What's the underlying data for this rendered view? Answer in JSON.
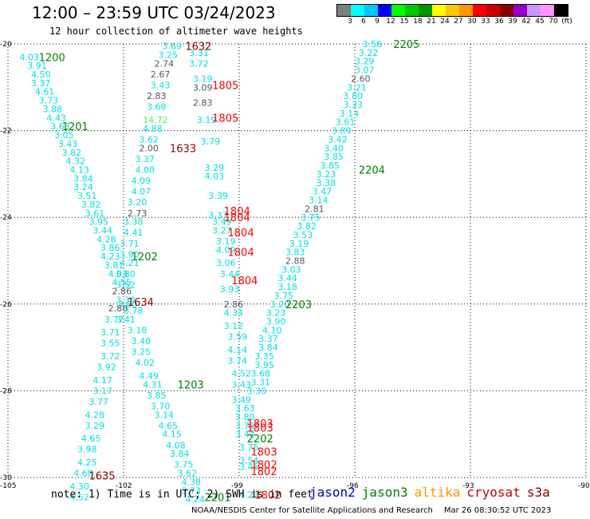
{
  "header": {
    "title": "12:00 – 23:59 UTC 03/24/2023",
    "subtitle": "12 hour collection of altimeter wave heights"
  },
  "colorbar": {
    "colors": [
      "#7f7f7f",
      "#00ffff",
      "#00c8ff",
      "#0000ff",
      "#00ff00",
      "#00c800",
      "#009600",
      "#ffff00",
      "#ffc800",
      "#ff9600",
      "#ff0000",
      "#c80000",
      "#8b0000",
      "#9600c8",
      "#c896ff",
      "#ff96ff",
      "#000000"
    ],
    "labels": [
      "3",
      "6",
      "9",
      "12",
      "15",
      "18",
      "21",
      "24",
      "27",
      "30",
      "33",
      "36",
      "39",
      "42",
      "45",
      "70",
      "(ft)"
    ]
  },
  "axes": {
    "lon_labels": [
      "-105",
      "-102",
      "-99",
      "-96",
      "-93",
      "-90"
    ],
    "lat_labels": [
      "-20",
      "-22",
      "-24",
      "-26",
      "-28",
      "-30"
    ]
  },
  "points": [
    {
      "lon": -104.7,
      "lat": -20.3,
      "v": "4.03"
    },
    {
      "lon": -104.5,
      "lat": -20.5,
      "v": "3.91"
    },
    {
      "lon": -104.4,
      "lat": -20.7,
      "v": "4.50"
    },
    {
      "lon": -104.4,
      "lat": -20.9,
      "v": "3.37"
    },
    {
      "lon": -104.3,
      "lat": -21.1,
      "v": "4.61"
    },
    {
      "lon": -104.2,
      "lat": -21.3,
      "v": "3.73"
    },
    {
      "lon": -104.1,
      "lat": -21.5,
      "v": "3.88"
    },
    {
      "lon": -104.0,
      "lat": -21.7,
      "v": "4.43"
    },
    {
      "lon": -103.9,
      "lat": -21.9,
      "v": "3.63"
    },
    {
      "lon": -103.8,
      "lat": -22.1,
      "v": "3.05"
    },
    {
      "lon": -103.7,
      "lat": -22.3,
      "v": "3.43"
    },
    {
      "lon": -103.6,
      "lat": -22.5,
      "v": "3.82"
    },
    {
      "lon": -103.5,
      "lat": -22.7,
      "v": "4.32"
    },
    {
      "lon": -103.4,
      "lat": -22.9,
      "v": "4.13"
    },
    {
      "lon": -103.3,
      "lat": -23.1,
      "v": "3.84"
    },
    {
      "lon": -103.3,
      "lat": -23.3,
      "v": "3.24"
    },
    {
      "lon": -103.2,
      "lat": -23.5,
      "v": "3.51"
    },
    {
      "lon": -103.1,
      "lat": -23.7,
      "v": "3.82"
    },
    {
      "lon": -103.0,
      "lat": -23.9,
      "v": "3.61"
    },
    {
      "lon": -102.9,
      "lat": -24.1,
      "v": "3.95"
    },
    {
      "lon": -102.8,
      "lat": -24.3,
      "v": "3.44"
    },
    {
      "lon": -102.7,
      "lat": -24.5,
      "v": "4.28"
    },
    {
      "lon": -102.6,
      "lat": -24.7,
      "v": "3.86"
    },
    {
      "lon": -102.6,
      "lat": -24.9,
      "v": "4.23"
    },
    {
      "lon": -102.5,
      "lat": -25.1,
      "v": "3.81"
    },
    {
      "lon": -102.4,
      "lat": -25.3,
      "v": "4.03"
    },
    {
      "lon": -102.3,
      "lat": -25.5,
      "v": "4.55"
    },
    {
      "lon": -102.3,
      "lat": -25.7,
      "v": "2.86",
      "c": "gray"
    },
    {
      "lon": -102.2,
      "lat": -25.9,
      "v": "3.33"
    },
    {
      "lon": -102.4,
      "lat": -26.1,
      "v": "2.88",
      "c": "gray"
    },
    {
      "lon": -102.5,
      "lat": -26.35,
      "v": "3.77"
    },
    {
      "lon": -102.6,
      "lat": -26.65,
      "v": "3.71"
    },
    {
      "lon": -102.6,
      "lat": -26.9,
      "v": "3.55"
    },
    {
      "lon": -102.6,
      "lat": -27.2,
      "v": "3.72"
    },
    {
      "lon": -102.7,
      "lat": -27.45,
      "v": "3.92"
    },
    {
      "lon": -102.8,
      "lat": -27.75,
      "v": "4.17"
    },
    {
      "lon": -102.8,
      "lat": -28.0,
      "v": "3.17"
    },
    {
      "lon": -102.9,
      "lat": -28.25,
      "v": "3.77"
    },
    {
      "lon": -103.0,
      "lat": -28.55,
      "v": "4.28"
    },
    {
      "lon": -103.0,
      "lat": -28.8,
      "v": "3.29"
    },
    {
      "lon": -103.1,
      "lat": -29.1,
      "v": "4.65"
    },
    {
      "lon": -103.2,
      "lat": -29.35,
      "v": "3.98"
    },
    {
      "lon": -103.2,
      "lat": -29.65,
      "v": "4.25"
    },
    {
      "lon": -103.3,
      "lat": -29.9,
      "v": "4.68"
    },
    {
      "lon": -103.4,
      "lat": -30.2,
      "v": "4.30"
    },
    {
      "lon": -103.4,
      "lat": -30.45,
      "v": "4.52"
    },
    {
      "lon": -101.0,
      "lat": -20.05,
      "v": "3.69"
    },
    {
      "lon": -101.1,
      "lat": -20.25,
      "v": "3.25"
    },
    {
      "lon": -101.2,
      "lat": -20.45,
      "v": "2.74",
      "c": "gray"
    },
    {
      "lon": -101.3,
      "lat": -20.7,
      "v": "2.67",
      "c": "gray"
    },
    {
      "lon": -101.3,
      "lat": -20.95,
      "v": "3.43"
    },
    {
      "lon": -101.4,
      "lat": -21.2,
      "v": "2.83",
      "c": "gray"
    },
    {
      "lon": -101.4,
      "lat": -21.45,
      "v": "3.68"
    },
    {
      "lon": -101.5,
      "lat": -21.75,
      "v": "14.72",
      "c": "lime"
    },
    {
      "lon": -101.5,
      "lat": -21.95,
      "v": "4.88"
    },
    {
      "lon": -101.6,
      "lat": -22.2,
      "v": "3.62"
    },
    {
      "lon": -101.6,
      "lat": -22.4,
      "v": "2.00",
      "c": "gray"
    },
    {
      "lon": -101.7,
      "lat": -22.65,
      "v": "3.37"
    },
    {
      "lon": -101.7,
      "lat": -22.9,
      "v": "4.08"
    },
    {
      "lon": -101.8,
      "lat": -23.15,
      "v": "4.09"
    },
    {
      "lon": -101.8,
      "lat": -23.4,
      "v": "4.07"
    },
    {
      "lon": -101.9,
      "lat": -23.65,
      "v": "3.20"
    },
    {
      "lon": -101.9,
      "lat": -23.9,
      "v": "2.73",
      "c": "gray"
    },
    {
      "lon": -102.0,
      "lat": -24.1,
      "v": "3.38"
    },
    {
      "lon": -102.0,
      "lat": -24.35,
      "v": "4.41"
    },
    {
      "lon": -102.1,
      "lat": -24.6,
      "v": "3.71"
    },
    {
      "lon": -102.1,
      "lat": -24.85,
      "v": "3.90"
    },
    {
      "lon": -102.1,
      "lat": -25.05,
      "v": "4.21"
    },
    {
      "lon": -102.2,
      "lat": -25.3,
      "v": "3.80"
    },
    {
      "lon": -102.2,
      "lat": -25.55,
      "v": "3.52"
    },
    {
      "lon": -102.15,
      "lat": -26.0,
      "v": "3.80"
    },
    {
      "lon": -102.0,
      "lat": -26.15,
      "v": "3.78"
    },
    {
      "lon": -102.2,
      "lat": -26.35,
      "v": "3.41"
    },
    {
      "lon": -101.9,
      "lat": -26.6,
      "v": "3.18"
    },
    {
      "lon": -101.8,
      "lat": -26.85,
      "v": "3.40"
    },
    {
      "lon": -101.8,
      "lat": -27.1,
      "v": "3.25"
    },
    {
      "lon": -101.7,
      "lat": -27.35,
      "v": "4.02"
    },
    {
      "lon": -101.6,
      "lat": -27.65,
      "v": "4.49"
    },
    {
      "lon": -101.5,
      "lat": -27.85,
      "v": "4.31"
    },
    {
      "lon": -101.4,
      "lat": -28.1,
      "v": "3.85"
    },
    {
      "lon": -101.3,
      "lat": -28.35,
      "v": "3.70"
    },
    {
      "lon": -101.2,
      "lat": -28.55,
      "v": "3.14"
    },
    {
      "lon": -101.1,
      "lat": -28.8,
      "v": "4.65"
    },
    {
      "lon": -101.0,
      "lat": -29.0,
      "v": "4.15"
    },
    {
      "lon": -100.9,
      "lat": -29.25,
      "v": "4.08"
    },
    {
      "lon": -100.8,
      "lat": -29.45,
      "v": "3.84"
    },
    {
      "lon": -100.7,
      "lat": -29.7,
      "v": "3.75"
    },
    {
      "lon": -100.6,
      "lat": -29.9,
      "v": "3.62"
    },
    {
      "lon": -100.5,
      "lat": -30.1,
      "v": "4.38"
    },
    {
      "lon": -100.5,
      "lat": -30.3,
      "v": "3.73"
    },
    {
      "lon": -100.4,
      "lat": -30.5,
      "v": "4.24"
    },
    {
      "lon": -100.3,
      "lat": -20.2,
      "v": "3.31"
    },
    {
      "lon": -100.3,
      "lat": -20.45,
      "v": "3.72"
    },
    {
      "lon": -100.2,
      "lat": -20.8,
      "v": "3.19"
    },
    {
      "lon": -100.2,
      "lat": -21.0,
      "v": "3.09",
      "c": "gray"
    },
    {
      "lon": -100.2,
      "lat": -21.35,
      "v": "2.83",
      "c": "gray"
    },
    {
      "lon": -100.1,
      "lat": -21.75,
      "v": "3.19"
    },
    {
      "lon": -100.0,
      "lat": -22.25,
      "v": "3.79"
    },
    {
      "lon": -99.9,
      "lat": -22.85,
      "v": "3.29"
    },
    {
      "lon": -99.9,
      "lat": -23.05,
      "v": "4.03"
    },
    {
      "lon": -99.8,
      "lat": -23.5,
      "v": "3.39"
    },
    {
      "lon": -99.8,
      "lat": -23.95,
      "v": "3.37"
    },
    {
      "lon": -99.7,
      "lat": -24.1,
      "v": "3.49"
    },
    {
      "lon": -99.7,
      "lat": -24.3,
      "v": "3.27"
    },
    {
      "lon": -99.6,
      "lat": -24.55,
      "v": "3.19"
    },
    {
      "lon": -99.6,
      "lat": -24.75,
      "v": "4.09"
    },
    {
      "lon": -99.6,
      "lat": -25.05,
      "v": "3.06"
    },
    {
      "lon": -99.5,
      "lat": -25.3,
      "v": "3.44"
    },
    {
      "lon": -99.5,
      "lat": -25.65,
      "v": "3.93"
    },
    {
      "lon": -99.4,
      "lat": -26.0,
      "v": "2.86",
      "c": "gray"
    },
    {
      "lon": -99.4,
      "lat": -26.2,
      "v": "4.34"
    },
    {
      "lon": -99.4,
      "lat": -26.5,
      "v": "3.12"
    },
    {
      "lon": -99.3,
      "lat": -26.75,
      "v": "3.59"
    },
    {
      "lon": -99.3,
      "lat": -27.05,
      "v": "4.14"
    },
    {
      "lon": -99.3,
      "lat": -27.3,
      "v": "3.74"
    },
    {
      "lon": -99.2,
      "lat": -27.6,
      "v": "4.52"
    },
    {
      "lon": -99.2,
      "lat": -27.85,
      "v": "3.43"
    },
    {
      "lon": -99.2,
      "lat": -28.2,
      "v": "3.49"
    },
    {
      "lon": -99.1,
      "lat": -28.4,
      "v": "3.63"
    },
    {
      "lon": -99.1,
      "lat": -28.6,
      "v": "3.80"
    },
    {
      "lon": -99.1,
      "lat": -28.8,
      "v": "3.73"
    },
    {
      "lon": -99.1,
      "lat": -29.0,
      "v": "3.44"
    },
    {
      "lon": -99.0,
      "lat": -29.3,
      "v": "3.75"
    },
    {
      "lon": -99.0,
      "lat": -29.6,
      "v": "3.54"
    },
    {
      "lon": -99.0,
      "lat": -29.75,
      "v": "3.45"
    },
    {
      "lon": -99.0,
      "lat": -30.4,
      "v": "4.23"
    },
    {
      "lon": -95.8,
      "lat": -20.0,
      "v": "3.56"
    },
    {
      "lon": -95.9,
      "lat": -20.2,
      "v": "3.22"
    },
    {
      "lon": -96.0,
      "lat": -20.4,
      "v": "3.29"
    },
    {
      "lon": -96.0,
      "lat": -20.6,
      "v": "3.07"
    },
    {
      "lon": -96.1,
      "lat": -20.8,
      "v": "2.60",
      "c": "gray"
    },
    {
      "lon": -96.2,
      "lat": -21.0,
      "v": "3.21"
    },
    {
      "lon": -96.3,
      "lat": -21.2,
      "v": "3.80"
    },
    {
      "lon": -96.3,
      "lat": -21.4,
      "v": "3.33"
    },
    {
      "lon": -96.4,
      "lat": -21.6,
      "v": "3.14"
    },
    {
      "lon": -96.5,
      "lat": -21.8,
      "v": "3.61"
    },
    {
      "lon": -96.6,
      "lat": -22.0,
      "v": "3.89"
    },
    {
      "lon": -96.7,
      "lat": -22.2,
      "v": "3.42"
    },
    {
      "lon": -96.8,
      "lat": -22.4,
      "v": "3.40"
    },
    {
      "lon": -96.8,
      "lat": -22.6,
      "v": "3.85"
    },
    {
      "lon": -96.9,
      "lat": -22.8,
      "v": "3.85"
    },
    {
      "lon": -97.0,
      "lat": -23.0,
      "v": "3.23"
    },
    {
      "lon": -97.0,
      "lat": -23.2,
      "v": "3.38"
    },
    {
      "lon": -97.1,
      "lat": -23.4,
      "v": "3.47"
    },
    {
      "lon": -97.2,
      "lat": -23.6,
      "v": "3.14"
    },
    {
      "lon": -97.3,
      "lat": -23.8,
      "v": "2.81",
      "c": "gray"
    },
    {
      "lon": -97.4,
      "lat": -24.0,
      "v": "3.75"
    },
    {
      "lon": -97.5,
      "lat": -24.2,
      "v": "3.82"
    },
    {
      "lon": -97.6,
      "lat": -24.4,
      "v": "3.53"
    },
    {
      "lon": -97.7,
      "lat": -24.6,
      "v": "3.19"
    },
    {
      "lon": -97.8,
      "lat": -24.8,
      "v": "3.83"
    },
    {
      "lon": -97.8,
      "lat": -25.0,
      "v": "2.88",
      "c": "gray"
    },
    {
      "lon": -97.9,
      "lat": -25.2,
      "v": "3.03"
    },
    {
      "lon": -98.0,
      "lat": -25.4,
      "v": "3.44"
    },
    {
      "lon": -98.0,
      "lat": -25.6,
      "v": "3.18"
    },
    {
      "lon": -98.1,
      "lat": -25.8,
      "v": "3.75"
    },
    {
      "lon": -98.2,
      "lat": -26.0,
      "v": "3.20"
    },
    {
      "lon": -98.3,
      "lat": -26.2,
      "v": "3.23"
    },
    {
      "lon": -98.3,
      "lat": -26.4,
      "v": "3.90"
    },
    {
      "lon": -98.4,
      "lat": -26.6,
      "v": "4.10"
    },
    {
      "lon": -98.5,
      "lat": -26.8,
      "v": "3.37"
    },
    {
      "lon": -98.5,
      "lat": -27.0,
      "v": "3.84"
    },
    {
      "lon": -98.6,
      "lat": -27.2,
      "v": "3.35"
    },
    {
      "lon": -98.6,
      "lat": -27.4,
      "v": "3.95"
    },
    {
      "lon": -98.7,
      "lat": -27.6,
      "v": "3.68"
    },
    {
      "lon": -98.7,
      "lat": -27.8,
      "v": "3.31"
    },
    {
      "lon": -98.8,
      "lat": -28.0,
      "v": "3.30"
    }
  ],
  "labels": [
    {
      "lon": -104.2,
      "lat": -20.3,
      "t": "1200",
      "color": "#008000"
    },
    {
      "lon": -103.6,
      "lat": -21.9,
      "t": "1201",
      "color": "#008000"
    },
    {
      "lon": -101.8,
      "lat": -24.9,
      "t": "1202",
      "color": "#008000"
    },
    {
      "lon": -100.6,
      "lat": -27.85,
      "t": "1203",
      "color": "#008000"
    },
    {
      "lon": -98.8,
      "lat": -29.1,
      "t": "2202",
      "color": "#008000"
    },
    {
      "lon": -99.9,
      "lat": -30.45,
      "t": "2201",
      "color": "#008000"
    },
    {
      "lon": -97.8,
      "lat": -26.0,
      "t": "2203",
      "color": "#008000"
    },
    {
      "lon": -95.9,
      "lat": -22.9,
      "t": "2204",
      "color": "#008000"
    },
    {
      "lon": -95.0,
      "lat": -20.0,
      "t": "2205",
      "color": "#008000"
    },
    {
      "lon": -100.4,
      "lat": -20.05,
      "t": "1632",
      "color": "#8b0000"
    },
    {
      "lon": -100.8,
      "lat": -22.4,
      "t": "1633",
      "color": "#8b0000"
    },
    {
      "lon": -101.9,
      "lat": -25.95,
      "t": "1634",
      "color": "#8b0000"
    },
    {
      "lon": -102.9,
      "lat": -29.95,
      "t": "1635",
      "color": "#8b0000"
    },
    {
      "lon": -99.7,
      "lat": -20.95,
      "t": "1805",
      "color": "#ff0000"
    },
    {
      "lon": -99.7,
      "lat": -21.7,
      "t": "1805",
      "color": "#ff0000"
    },
    {
      "lon": -99.4,
      "lat": -23.85,
      "t": "1804",
      "color": "#ff0000"
    },
    {
      "lon": -99.4,
      "lat": -24.0,
      "t": "1804",
      "color": "#ff0000"
    },
    {
      "lon": -99.3,
      "lat": -24.35,
      "t": "1804",
      "color": "#ff0000"
    },
    {
      "lon": -99.3,
      "lat": -24.8,
      "t": "1804",
      "color": "#ff0000"
    },
    {
      "lon": -99.2,
      "lat": -25.45,
      "t": "1804",
      "color": "#ff0000"
    },
    {
      "lon": -98.8,
      "lat": -28.75,
      "t": "1803",
      "color": "#ff0000"
    },
    {
      "lon": -98.8,
      "lat": -28.85,
      "t": "1803",
      "color": "#ff0000"
    },
    {
      "lon": -98.7,
      "lat": -29.4,
      "t": "1803",
      "color": "#ff0000"
    },
    {
      "lon": -98.7,
      "lat": -29.7,
      "t": "1802",
      "color": "#ff0000"
    },
    {
      "lon": -98.7,
      "lat": -29.85,
      "t": "1802",
      "color": "#ff0000"
    },
    {
      "lon": -98.6,
      "lat": -30.4,
      "t": "1802",
      "color": "#ff0000"
    }
  ],
  "footer": {
    "note": "note: 1) Time is in UTC; 2) SWH is in feet",
    "legend": [
      {
        "name": "jason2",
        "color": "#0000cc"
      },
      {
        "name": "jason3",
        "color": "#008000"
      },
      {
        "name": "altika",
        "color": "#ff9600"
      },
      {
        "name": "cryosat",
        "color": "#cc0000"
      },
      {
        "name": "s3a",
        "color": "#8b0000"
      }
    ],
    "credit": "NOAA/NESDIS Center for Satellite Applications and Research",
    "timestamp": "Mar 26 08:30:52 UTC 2023"
  }
}
